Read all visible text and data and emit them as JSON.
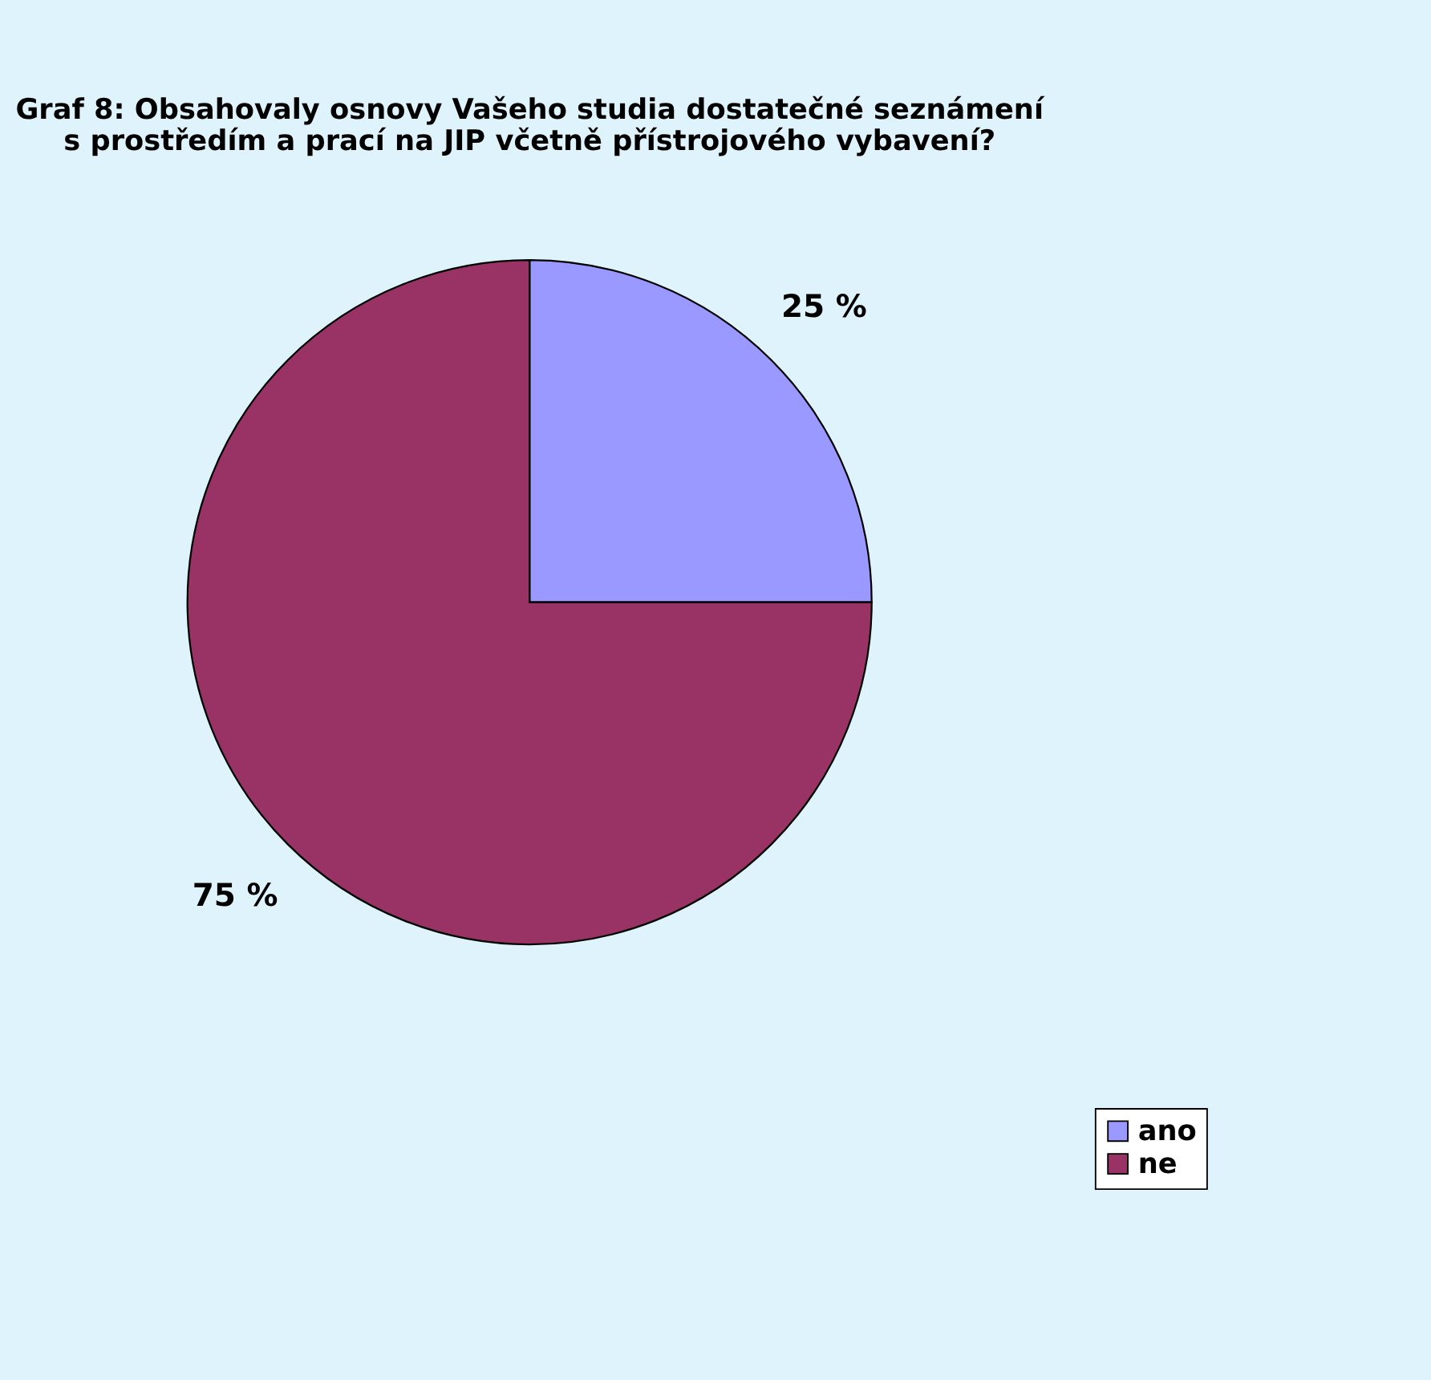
{
  "chart_data": {
    "type": "pie",
    "title": "Graf 8: Obsahovaly osnovy Vašeho studia dostatečné seznámení\ns prostředím a prací na JIP včetně přístrojového vybavení?",
    "categories": [
      "ano",
      "ne"
    ],
    "values": [
      25,
      75
    ],
    "colors": [
      "#9999ff",
      "#993366"
    ],
    "value_labels": [
      "25 %",
      "75 %"
    ],
    "legend": "bottom right"
  }
}
